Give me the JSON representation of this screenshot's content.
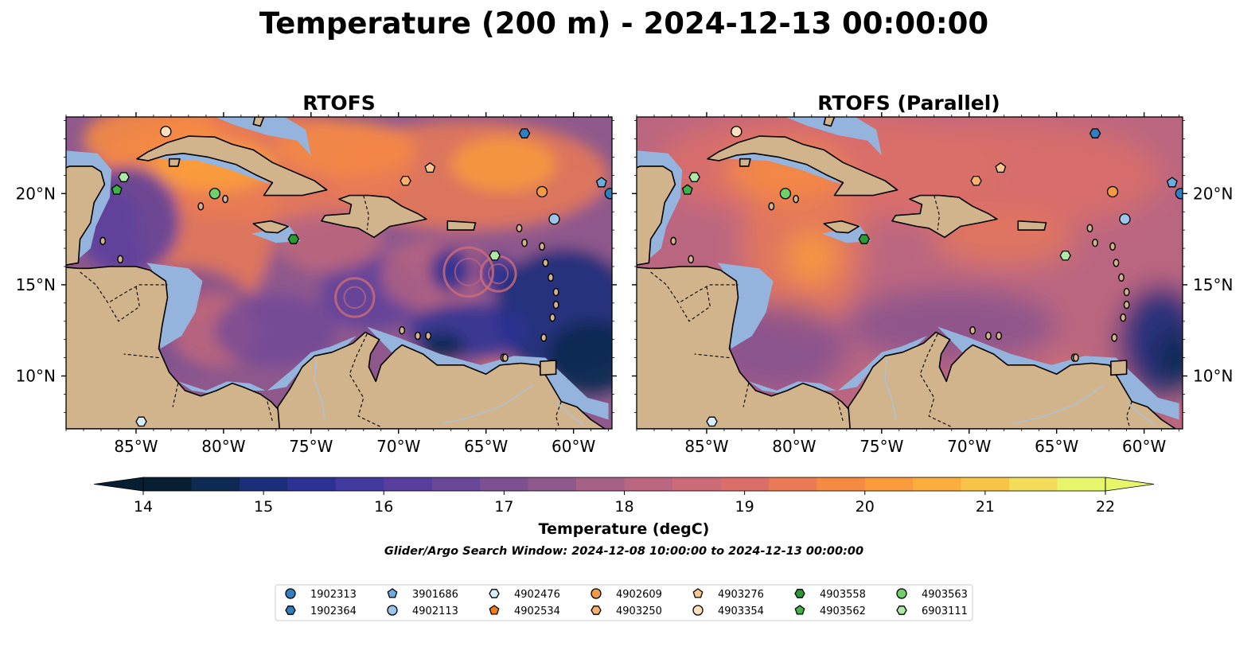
{
  "figure": {
    "title": "Temperature (200 m) - 2024-12-13 00:00:00",
    "search_window": "Glider/Argo Search Window: 2024-12-08 10:00:00 to 2024-12-13 00:00:00"
  },
  "panels": [
    {
      "title": "RTOFS",
      "style": "eddy"
    },
    {
      "title": "RTOFS (Parallel)",
      "style": "smooth"
    }
  ],
  "map": {
    "lon_range": [
      -89.0,
      -57.8
    ],
    "lat_range": [
      7.1,
      24.2
    ],
    "lon_ticks": [
      {
        "value": -85,
        "label": "85°W"
      },
      {
        "value": -80,
        "label": "80°W"
      },
      {
        "value": -75,
        "label": "75°W"
      },
      {
        "value": -70,
        "label": "70°W"
      },
      {
        "value": -65,
        "label": "65°W"
      },
      {
        "value": -60,
        "label": "60°W"
      }
    ],
    "lat_ticks": [
      {
        "value": 20,
        "label": "20°N"
      },
      {
        "value": 15,
        "label": "15°N"
      },
      {
        "value": 10,
        "label": "10°N"
      }
    ],
    "colors": {
      "land": "#d2b48c",
      "shelf": "#95b4dd",
      "deep_land_sea": "#0b2236",
      "border": "#000000"
    }
  },
  "colorbar": {
    "label": "Temperature (degC)",
    "min": 14,
    "max": 22,
    "step": 0.5,
    "ticks": [
      "14",
      "15",
      "16",
      "17",
      "18",
      "19",
      "20",
      "21",
      "22"
    ],
    "colors": [
      "#081f33",
      "#0c2a52",
      "#1a2e7a",
      "#2c3293",
      "#433aa0",
      "#583e9e",
      "#6b479a",
      "#7d5092",
      "#8f598c",
      "#a56286",
      "#bb6680",
      "#cc6b78",
      "#da6e69",
      "#e97a55",
      "#f58a43",
      "#fa9c3b",
      "#fbae3d",
      "#f8c448",
      "#f2dc5a",
      "#e6f56a"
    ]
  },
  "legend": {
    "entries": [
      {
        "id": "1902313",
        "marker": "circle",
        "color": "#2f7fc1"
      },
      {
        "id": "1902364",
        "marker": "hexagon",
        "color": "#2f7fc1"
      },
      {
        "id": "3901686",
        "marker": "pentagon",
        "color": "#6aaee1"
      },
      {
        "id": "4902113",
        "marker": "circle",
        "color": "#9ac6ec"
      },
      {
        "id": "4902476",
        "marker": "hexagon",
        "color": "#d8ecfa"
      },
      {
        "id": "4902534",
        "marker": "pentagon",
        "color": "#f07f1b"
      },
      {
        "id": "4902609",
        "marker": "circle",
        "color": "#f39a44"
      },
      {
        "id": "4903250",
        "marker": "hexagon",
        "color": "#f8b26b"
      },
      {
        "id": "4903276",
        "marker": "pentagon",
        "color": "#fbc98f"
      },
      {
        "id": "4903354",
        "marker": "circle",
        "color": "#fde1bd"
      },
      {
        "id": "4903558",
        "marker": "hexagon",
        "color": "#2a9a35"
      },
      {
        "id": "4903562",
        "marker": "pentagon",
        "color": "#3fb24a"
      },
      {
        "id": "4903563",
        "marker": "circle",
        "color": "#6fd06a"
      },
      {
        "id": "6903111",
        "marker": "hexagon",
        "color": "#aee8a6"
      }
    ]
  },
  "floats": [
    {
      "id": "4903354",
      "lon": -83.3,
      "lat": 23.4
    },
    {
      "id": "1902364",
      "lon": -62.8,
      "lat": 23.3
    },
    {
      "id": "6903111",
      "lon": -85.7,
      "lat": 20.9
    },
    {
      "id": "4903562",
      "lon": -86.1,
      "lat": 20.2
    },
    {
      "id": "4903563",
      "lon": -80.5,
      "lat": 20.0
    },
    {
      "id": "4903250",
      "lon": -69.6,
      "lat": 20.7
    },
    {
      "id": "4903276",
      "lon": -68.2,
      "lat": 21.4
    },
    {
      "id": "4902609",
      "lon": -61.8,
      "lat": 20.1
    },
    {
      "id": "3901686",
      "lon": -58.4,
      "lat": 20.6
    },
    {
      "id": "1902313",
      "lon": -57.9,
      "lat": 20.0
    },
    {
      "id": "4902113",
      "lon": -61.1,
      "lat": 18.6
    },
    {
      "id": "4903558",
      "lon": -76.0,
      "lat": 17.5
    },
    {
      "id": "6903111",
      "lon": -64.5,
      "lat": 16.6
    },
    {
      "id": "4902476",
      "lon": -84.7,
      "lat": 7.5
    }
  ]
}
